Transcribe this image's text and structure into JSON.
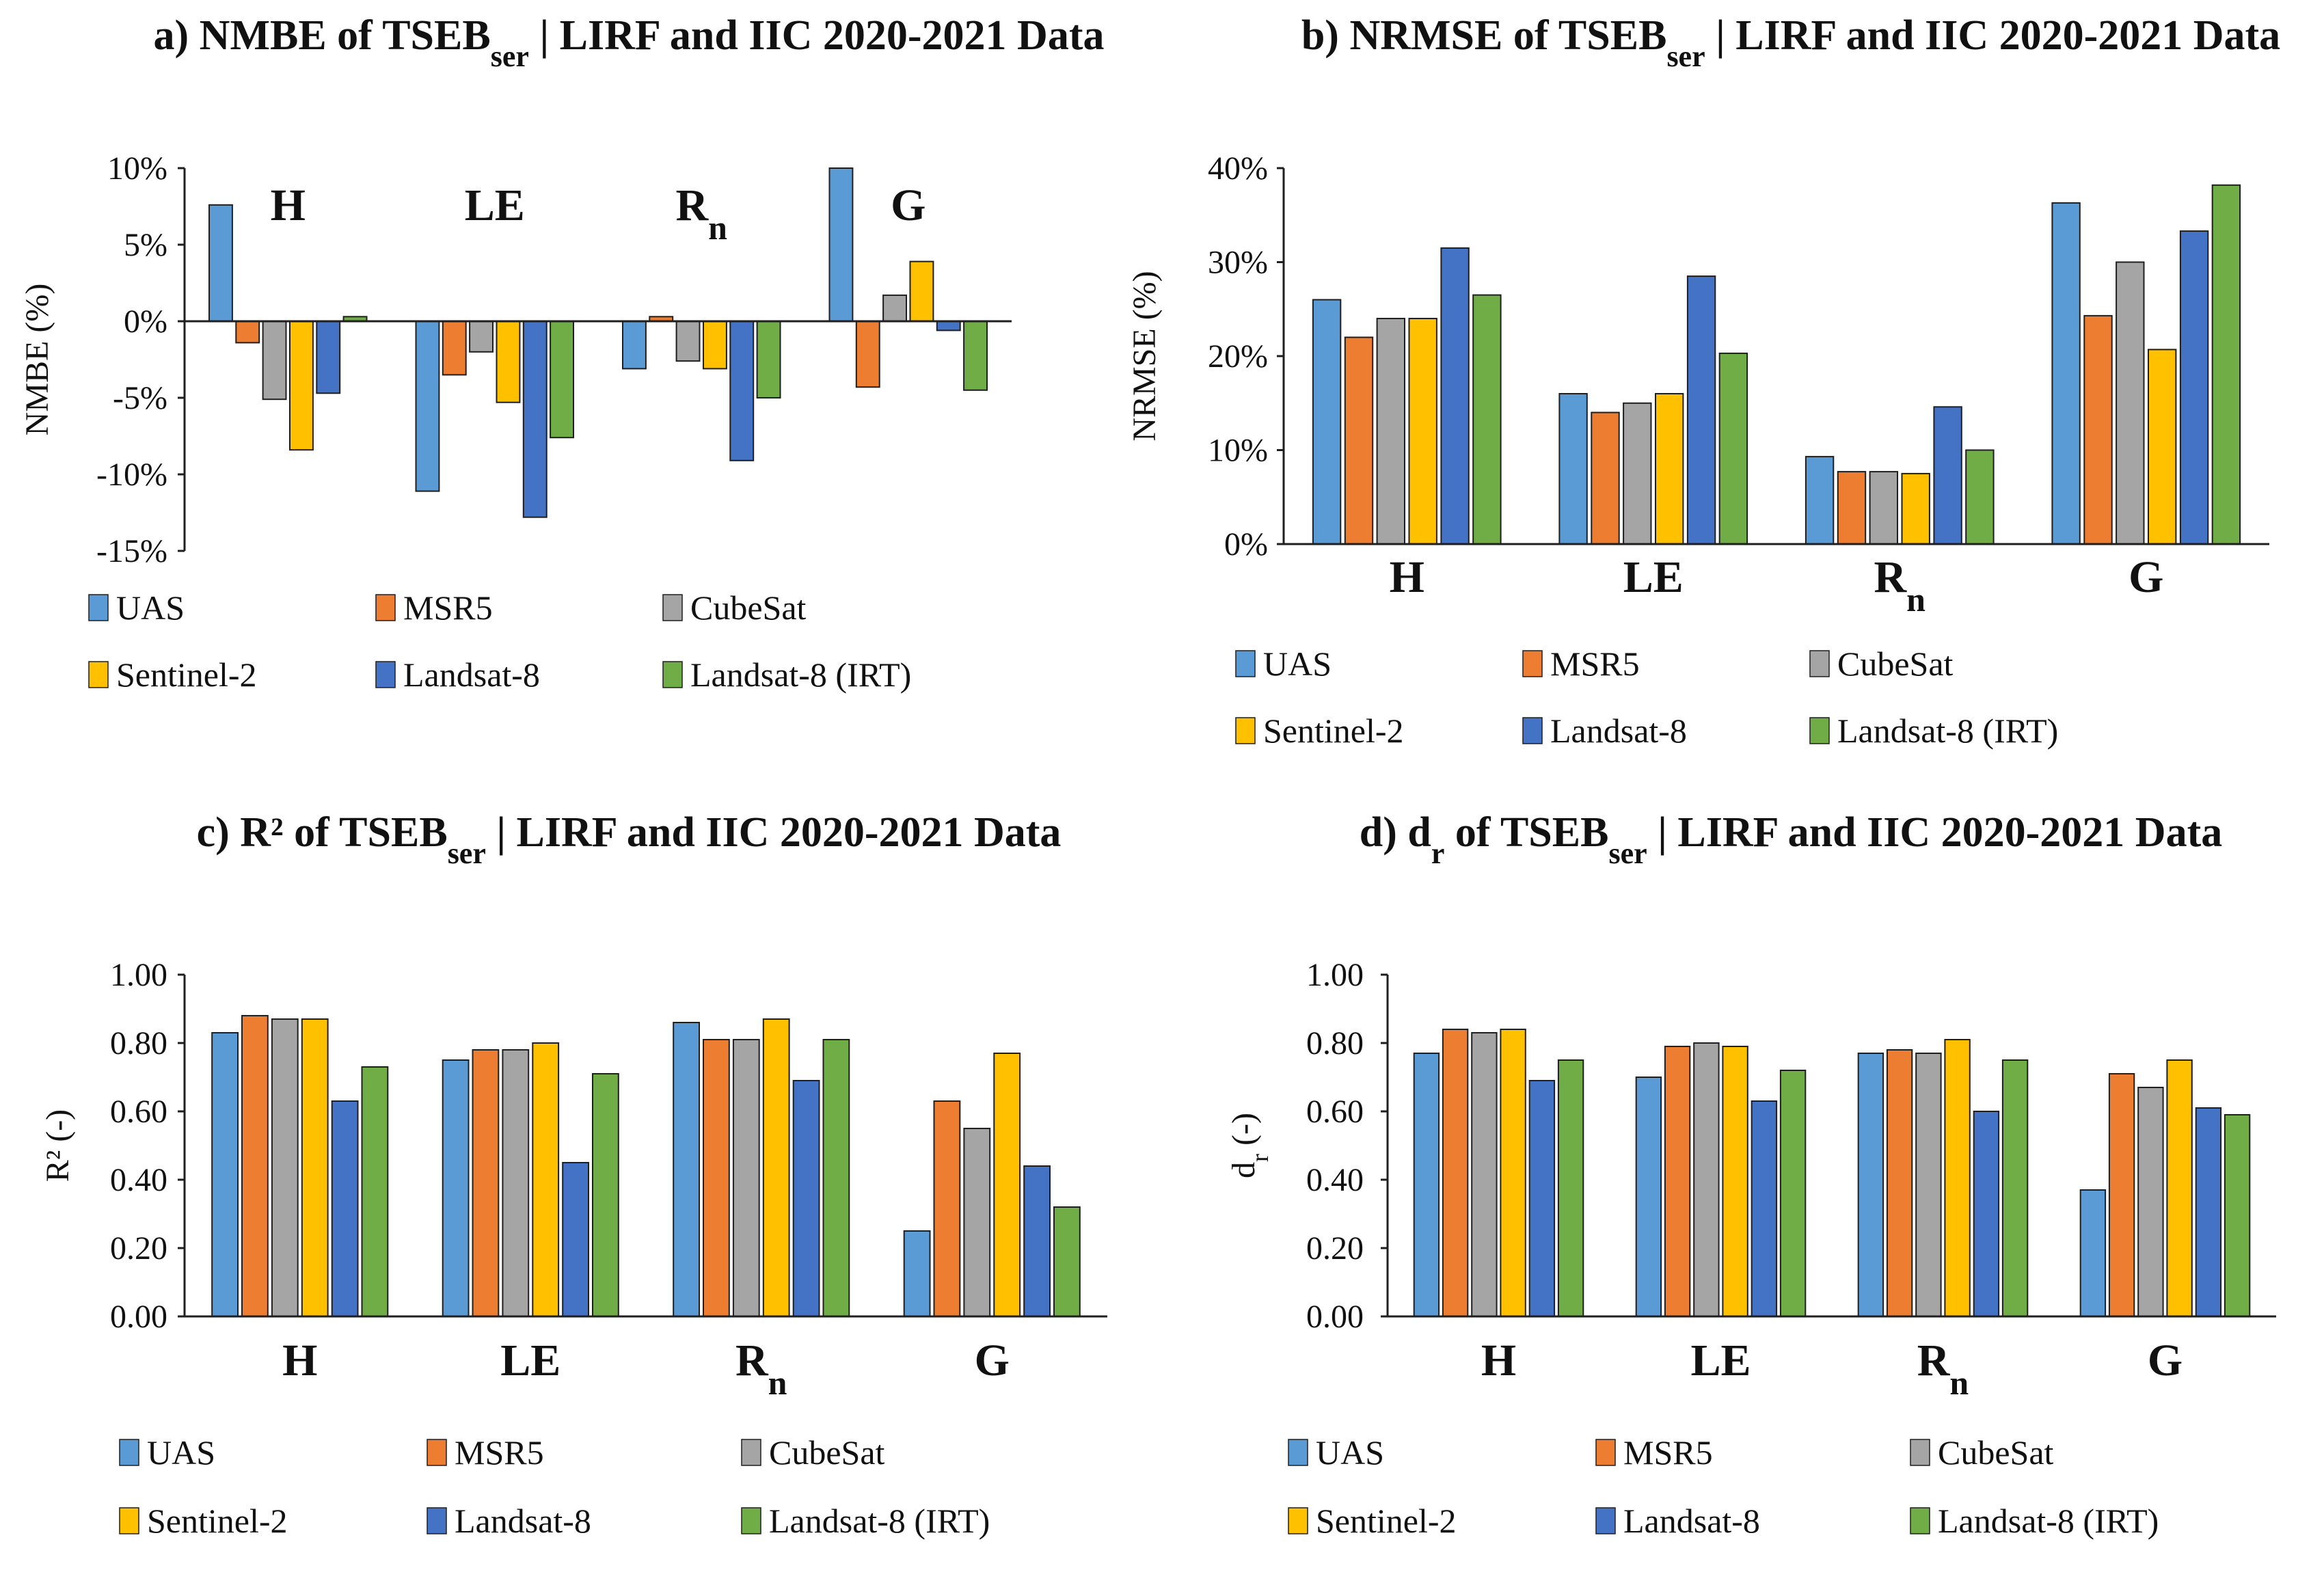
{
  "chart_data": [
    {
      "type": "bar",
      "panel": "a)",
      "title_main": "NMBE of TSEB",
      "title_sub": "ser",
      "title_rest": "| LIRF and IIC 2020-2021 Data",
      "ylabel": "NMBE (%)",
      "ylim": [
        -15,
        10
      ],
      "yticks": [
        10,
        5,
        0,
        -5,
        -10,
        -15
      ],
      "yticklabels": [
        "10%",
        "5%",
        "0%",
        "-5%",
        "-10%",
        "-15%"
      ],
      "category_labels_position": "top",
      "categories": [
        {
          "main": "H",
          "sub": ""
        },
        {
          "main": "LE",
          "sub": ""
        },
        {
          "main": "R",
          "sub": "n"
        },
        {
          "main": "G",
          "sub": ""
        }
      ],
      "series": [
        {
          "name": "UAS",
          "values": [
            7.6,
            -11.1,
            -3.1,
            10.0
          ]
        },
        {
          "name": "MSR5",
          "values": [
            -1.4,
            -3.5,
            0.3,
            -4.3
          ]
        },
        {
          "name": "CubeSat",
          "values": [
            -5.1,
            -2.0,
            -2.6,
            1.7
          ]
        },
        {
          "name": "Sentinel-2",
          "values": [
            -8.4,
            -5.3,
            -3.1,
            3.9
          ]
        },
        {
          "name": "Landsat-8",
          "values": [
            -4.7,
            -12.8,
            -9.1,
            -0.6
          ]
        },
        {
          "name": "Landsat-8 (IRT)",
          "values": [
            0.3,
            -7.6,
            -5.0,
            -4.5
          ]
        }
      ]
    },
    {
      "type": "bar",
      "panel": "b)",
      "title_main": "NRMSE of TSEB",
      "title_sub": "ser",
      "title_rest": "| LIRF and IIC 2020-2021 Data",
      "ylabel": "NRMSE (%)",
      "ylim": [
        0,
        40
      ],
      "yticks": [
        40,
        30,
        20,
        10,
        0
      ],
      "yticklabels": [
        "40%",
        "30%",
        "20%",
        "10%",
        "0%"
      ],
      "category_labels_position": "bottom",
      "categories": [
        {
          "main": "H",
          "sub": ""
        },
        {
          "main": "LE",
          "sub": ""
        },
        {
          "main": "R",
          "sub": "n"
        },
        {
          "main": "G",
          "sub": ""
        }
      ],
      "series": [
        {
          "name": "UAS",
          "values": [
            26.0,
            16.0,
            9.3,
            36.3
          ]
        },
        {
          "name": "MSR5",
          "values": [
            22.0,
            14.0,
            7.7,
            24.3
          ]
        },
        {
          "name": "CubeSat",
          "values": [
            24.0,
            15.0,
            7.7,
            30.0
          ]
        },
        {
          "name": "Sentinel-2",
          "values": [
            24.0,
            16.0,
            7.5,
            20.7
          ]
        },
        {
          "name": "Landsat-8",
          "values": [
            31.5,
            28.5,
            14.6,
            33.3
          ]
        },
        {
          "name": "Landsat-8 (IRT)",
          "values": [
            26.5,
            20.3,
            10.0,
            38.2
          ]
        }
      ]
    },
    {
      "type": "bar",
      "panel": "c)",
      "title_main": "R² of TSEB",
      "title_sub": "ser",
      "title_rest": "| LIRF and IIC 2020-2021  Data",
      "ylabel": "R² (-)",
      "ylim": [
        0,
        1
      ],
      "yticks": [
        1.0,
        0.8,
        0.6,
        0.4,
        0.2,
        0.0
      ],
      "yticklabels": [
        "1.00",
        "0.80",
        "0.60",
        "0.40",
        "0.20",
        "0.00"
      ],
      "category_labels_position": "bottom",
      "categories": [
        {
          "main": "H",
          "sub": ""
        },
        {
          "main": "LE",
          "sub": ""
        },
        {
          "main": "R",
          "sub": "n"
        },
        {
          "main": "G",
          "sub": ""
        }
      ],
      "series": [
        {
          "name": "UAS",
          "values": [
            0.83,
            0.75,
            0.86,
            0.25
          ]
        },
        {
          "name": "MSR5",
          "values": [
            0.88,
            0.78,
            0.81,
            0.63
          ]
        },
        {
          "name": "CubeSat",
          "values": [
            0.87,
            0.78,
            0.81,
            0.55
          ]
        },
        {
          "name": "Sentinel-2",
          "values": [
            0.87,
            0.8,
            0.87,
            0.77
          ]
        },
        {
          "name": "Landsat-8",
          "values": [
            0.63,
            0.45,
            0.69,
            0.44
          ]
        },
        {
          "name": "Landsat-8 (IRT)",
          "values": [
            0.73,
            0.71,
            0.81,
            0.32
          ]
        }
      ]
    },
    {
      "type": "bar",
      "panel": "d)",
      "title_main": "d",
      "title_main_sub": "r",
      "title_main_rest": " of TSEB",
      "title_sub": "ser",
      "title_rest": "| LIRF and IIC 2020-2021  Data",
      "ylabel_main": "d",
      "ylabel_sub": "r",
      "ylabel_rest": " (-)",
      "ylim": [
        0,
        1
      ],
      "yticks": [
        1.0,
        0.8,
        0.6,
        0.4,
        0.2,
        0.0
      ],
      "yticklabels": [
        "1.00",
        "0.80",
        "0.60",
        "0.40",
        "0.20",
        "0.00"
      ],
      "category_labels_position": "bottom",
      "categories": [
        {
          "main": "H",
          "sub": ""
        },
        {
          "main": "LE",
          "sub": ""
        },
        {
          "main": "R",
          "sub": "n"
        },
        {
          "main": "G",
          "sub": ""
        }
      ],
      "series": [
        {
          "name": "UAS",
          "values": [
            0.77,
            0.7,
            0.77,
            0.37
          ]
        },
        {
          "name": "MSR5",
          "values": [
            0.84,
            0.79,
            0.78,
            0.71
          ]
        },
        {
          "name": "CubeSat",
          "values": [
            0.83,
            0.8,
            0.77,
            0.67
          ]
        },
        {
          "name": "Sentinel-2",
          "values": [
            0.84,
            0.79,
            0.81,
            0.75
          ]
        },
        {
          "name": "Landsat-8",
          "values": [
            0.69,
            0.63,
            0.6,
            0.61
          ]
        },
        {
          "name": "Landsat-8 (IRT)",
          "values": [
            0.75,
            0.72,
            0.75,
            0.59
          ]
        }
      ]
    }
  ],
  "colors": {
    "UAS": "#5b9bd5",
    "MSR5": "#ed7d31",
    "CubeSat": "#a5a5a5",
    "Sentinel-2": "#ffc000",
    "Landsat-8": "#4472c4",
    "Landsat-8 (IRT)": "#70ad47",
    "bar_stroke": "#1f1f1f",
    "axis": "#1f1f1f"
  }
}
